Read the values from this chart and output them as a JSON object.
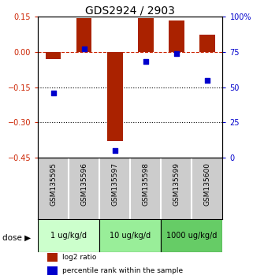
{
  "title": "GDS2924 / 2903",
  "samples": [
    "GSM135595",
    "GSM135596",
    "GSM135597",
    "GSM135598",
    "GSM135599",
    "GSM135600"
  ],
  "log2_ratio": [
    -0.03,
    0.145,
    -0.38,
    0.143,
    0.135,
    0.075
  ],
  "percentile_rank": [
    46,
    77,
    5,
    68,
    74,
    55
  ],
  "bar_color": "#aa2200",
  "dot_color": "#0000cc",
  "ylim_left": [
    -0.45,
    0.15
  ],
  "ylim_right": [
    0,
    100
  ],
  "yticks_left": [
    0.15,
    0,
    -0.15,
    -0.3,
    -0.45
  ],
  "yticks_right": [
    100,
    75,
    50,
    25,
    0
  ],
  "dotted_lines": [
    -0.15,
    -0.3
  ],
  "dose_groups": [
    {
      "label": "1 ug/kg/d",
      "start": 0,
      "end": 2,
      "color": "#ccffcc"
    },
    {
      "label": "10 ug/kg/d",
      "start": 2,
      "end": 4,
      "color": "#99ee99"
    },
    {
      "label": "1000 ug/kg/d",
      "start": 4,
      "end": 6,
      "color": "#66cc66"
    }
  ],
  "legend_items": [
    {
      "label": "log2 ratio",
      "color": "#aa2200"
    },
    {
      "label": "percentile rank within the sample",
      "color": "#0000cc"
    }
  ],
  "background_color": "#ffffff"
}
